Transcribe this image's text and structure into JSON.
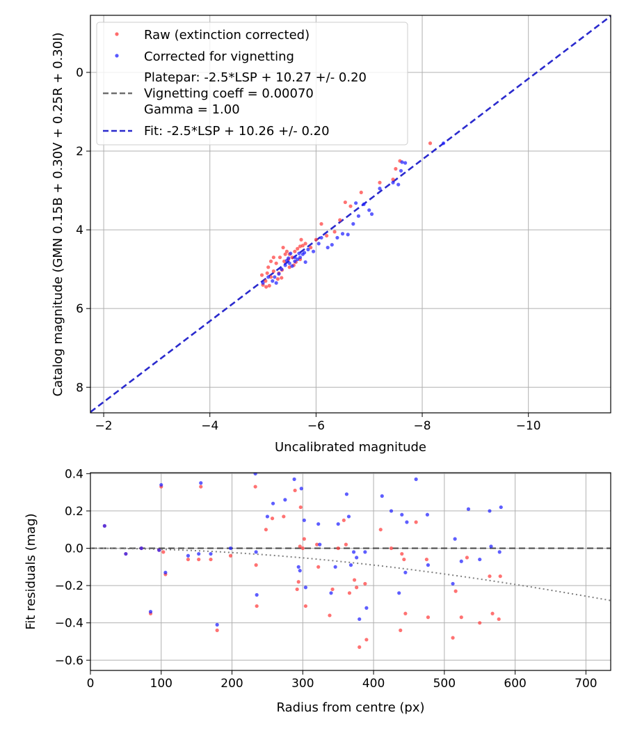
{
  "colors": {
    "raw": "#ff3b3b",
    "corrected": "#2020ff",
    "fit": "#2a2acd",
    "platepar": "#6e6e6e",
    "grid": "#b0b0b0",
    "zero_line": "#444444",
    "vignetting_curve": "#7f7f7f"
  },
  "chart_data": [
    {
      "id": "top",
      "type": "scatter",
      "xlabel": "Uncalibrated magnitude",
      "ylabel": "Catalog magnitude (GMN 0.15B + 0.30V + 0.25R + 0.30I)",
      "xlim": [
        -1.75,
        -11.55
      ],
      "ylim": [
        8.65,
        -1.45
      ],
      "xticks": [
        -2,
        -4,
        -6,
        -8,
        -10
      ],
      "xtick_labels": [
        "−2",
        "−4",
        "−6",
        "−8",
        "−10"
      ],
      "yticks": [
        0,
        2,
        4,
        6,
        8
      ],
      "ytick_labels": [
        "0",
        "2",
        "4",
        "6",
        "8"
      ],
      "grid": true,
      "legend": {
        "placement": "top-left",
        "entries": [
          {
            "label": "Raw (extinction corrected)",
            "style": "marker",
            "color_key": "raw"
          },
          {
            "label": "Corrected for vignetting",
            "style": "marker",
            "color_key": "corrected"
          },
          {
            "label": "Platepar: -2.5*LSP + 10.27 +/- 0.20",
            "style": "text"
          },
          {
            "label": "Vignetting coeff = 0.00070",
            "style": "dashed",
            "color_key": "platepar"
          },
          {
            "label": "Gamma = 1.00",
            "style": "text"
          },
          {
            "label": "Fit: -2.5*LSP + 10.26 +/- 0.20",
            "style": "dashed",
            "color_key": "fit"
          }
        ]
      },
      "lines": [
        {
          "name": "Fit",
          "x": [
            -1.75,
            -11.55
          ],
          "y": [
            8.63,
            -1.43
          ]
        }
      ],
      "series": [
        {
          "name": "Raw (extinction corrected)",
          "color_key": "raw",
          "points": [
            [
              -5.0,
              5.4
            ],
            [
              -5.05,
              5.3
            ],
            [
              -5.12,
              5.42
            ],
            [
              -4.98,
              5.15
            ],
            [
              -5.15,
              5.2
            ],
            [
              -5.2,
              5.05
            ],
            [
              -5.1,
              4.95
            ],
            [
              -5.28,
              5.25
            ],
            [
              -5.35,
              5.22
            ],
            [
              -5.3,
              5.1
            ],
            [
              -5.25,
              4.85
            ],
            [
              -5.4,
              4.8
            ],
            [
              -5.32,
              4.7
            ],
            [
              -5.45,
              4.55
            ],
            [
              -5.5,
              4.62
            ],
            [
              -5.55,
              4.7
            ],
            [
              -5.6,
              4.55
            ],
            [
              -5.65,
              4.48
            ],
            [
              -5.7,
              4.42
            ],
            [
              -5.75,
              4.4
            ],
            [
              -5.8,
              4.35
            ],
            [
              -5.58,
              4.9
            ],
            [
              -5.62,
              4.82
            ],
            [
              -5.7,
              4.75
            ],
            [
              -5.2,
              4.7
            ],
            [
              -5.38,
              4.45
            ],
            [
              -5.72,
              4.25
            ],
            [
              -5.42,
              4.62
            ],
            [
              -5.48,
              4.75
            ],
            [
              -5.15,
              4.8
            ],
            [
              -5.08,
              5.1
            ],
            [
              -5.5,
              4.95
            ],
            [
              -5.9,
              4.45
            ],
            [
              -6.0,
              4.25
            ],
            [
              -6.1,
              3.85
            ],
            [
              -6.2,
              4.15
            ],
            [
              -6.35,
              4.05
            ],
            [
              -6.45,
              3.75
            ],
            [
              -6.55,
              3.3
            ],
            [
              -6.65,
              3.4
            ],
            [
              -6.85,
              3.05
            ],
            [
              -7.2,
              2.8
            ],
            [
              -7.5,
              2.45
            ],
            [
              -7.58,
              2.25
            ],
            [
              -7.45,
              2.72
            ],
            [
              -8.15,
              1.8
            ],
            [
              -5.36,
              5.02
            ],
            [
              -5.06,
              5.45
            ]
          ]
        },
        {
          "name": "Corrected for vignetting",
          "color_key": "corrected",
          "points": [
            [
              -5.1,
              5.2
            ],
            [
              -5.18,
              5.3
            ],
            [
              -5.25,
              5.35
            ],
            [
              -5.3,
              5.12
            ],
            [
              -5.35,
              5.0
            ],
            [
              -5.42,
              4.9
            ],
            [
              -5.5,
              4.85
            ],
            [
              -5.55,
              4.92
            ],
            [
              -5.6,
              4.8
            ],
            [
              -5.65,
              4.75
            ],
            [
              -5.7,
              4.7
            ],
            [
              -5.75,
              4.62
            ],
            [
              -5.78,
              4.58
            ],
            [
              -5.8,
              4.82
            ],
            [
              -5.6,
              4.7
            ],
            [
              -5.45,
              4.78
            ],
            [
              -5.85,
              4.5
            ],
            [
              -5.95,
              4.55
            ],
            [
              -6.05,
              4.35
            ],
            [
              -6.1,
              4.2
            ],
            [
              -6.3,
              4.38
            ],
            [
              -6.4,
              4.2
            ],
            [
              -6.5,
              4.1
            ],
            [
              -6.6,
              4.12
            ],
            [
              -6.7,
              3.85
            ],
            [
              -6.8,
              3.65
            ],
            [
              -6.9,
              3.35
            ],
            [
              -7.0,
              3.5
            ],
            [
              -7.05,
              3.6
            ],
            [
              -7.2,
              2.95
            ],
            [
              -7.45,
              2.8
            ],
            [
              -7.55,
              2.85
            ],
            [
              -7.6,
              2.5
            ],
            [
              -7.62,
              2.28
            ],
            [
              -7.68,
              2.3
            ],
            [
              -8.4,
              1.8
            ],
            [
              -5.0,
              5.35
            ],
            [
              -5.22,
              5.2
            ],
            [
              -5.48,
              4.72
            ],
            [
              -5.68,
              4.6
            ],
            [
              -6.22,
              4.45
            ],
            [
              -6.75,
              3.32
            ],
            [
              -5.52,
              4.6
            ]
          ]
        }
      ]
    },
    {
      "id": "bottom",
      "type": "scatter",
      "xlabel": "Radius from centre (px)",
      "ylabel": "Fit residuals (mag)",
      "xlim": [
        0,
        735
      ],
      "ylim": [
        -0.655,
        0.405
      ],
      "xticks": [
        0,
        100,
        200,
        300,
        400,
        500,
        600,
        700
      ],
      "xtick_labels": [
        "0",
        "100",
        "200",
        "300",
        "400",
        "500",
        "600",
        "700"
      ],
      "yticks": [
        0.4,
        0.2,
        0.0,
        -0.2,
        -0.4,
        -0.6
      ],
      "ytick_labels": [
        "0.4",
        "0.2",
        "0.0",
        "−0.2",
        "−0.4",
        "−0.6"
      ],
      "grid": true,
      "lines": [
        {
          "name": "zero",
          "x": [
            0,
            735
          ],
          "y": [
            0,
            0
          ]
        },
        {
          "name": "vignetting",
          "type": "curve",
          "coeff": 0.0007,
          "x_range": [
            0,
            735
          ]
        }
      ],
      "series": [
        {
          "name": "Raw (extinction corrected)",
          "color_key": "raw",
          "points": [
            [
              20,
              0.12
            ],
            [
              50,
              -0.03
            ],
            [
              72,
              0.0
            ],
            [
              85,
              -0.35
            ],
            [
              97,
              -0.01
            ],
            [
              100,
              0.33
            ],
            [
              103,
              -0.02
            ],
            [
              106,
              -0.14
            ],
            [
              138,
              -0.06
            ],
            [
              153,
              -0.06
            ],
            [
              156,
              0.33
            ],
            [
              170,
              -0.06
            ],
            [
              179,
              -0.44
            ],
            [
              198,
              -0.04
            ],
            [
              233,
              0.33
            ],
            [
              234,
              -0.09
            ],
            [
              235,
              -0.31
            ],
            [
              248,
              0.1
            ],
            [
              257,
              0.16
            ],
            [
              273,
              0.17
            ],
            [
              289,
              0.31
            ],
            [
              292,
              -0.22
            ],
            [
              294,
              -0.18
            ],
            [
              296,
              0.01
            ],
            [
              297,
              0.22
            ],
            [
              300,
              0.0
            ],
            [
              302,
              0.05
            ],
            [
              304,
              -0.31
            ],
            [
              320,
              0.02
            ],
            [
              322,
              -0.1
            ],
            [
              338,
              -0.36
            ],
            [
              342,
              -0.22
            ],
            [
              350,
              0.0
            ],
            [
              358,
              0.15
            ],
            [
              361,
              0.02
            ],
            [
              366,
              -0.24
            ],
            [
              373,
              -0.17
            ],
            [
              376,
              -0.21
            ],
            [
              380,
              -0.53
            ],
            [
              388,
              -0.19
            ],
            [
              390,
              -0.49
            ],
            [
              410,
              0.1
            ],
            [
              425,
              0.0
            ],
            [
              438,
              -0.44
            ],
            [
              440,
              -0.03
            ],
            [
              443,
              -0.06
            ],
            [
              445,
              -0.35
            ],
            [
              460,
              0.14
            ],
            [
              475,
              -0.06
            ],
            [
              477,
              -0.37
            ],
            [
              512,
              -0.48
            ],
            [
              516,
              -0.23
            ],
            [
              524,
              -0.37
            ],
            [
              532,
              -0.05
            ],
            [
              550,
              -0.4
            ],
            [
              564,
              -0.15
            ],
            [
              568,
              -0.35
            ],
            [
              577,
              -0.38
            ],
            [
              579,
              -0.15
            ]
          ]
        },
        {
          "name": "Corrected for vignetting",
          "color_key": "corrected",
          "points": [
            [
              20,
              0.12
            ],
            [
              50,
              -0.03
            ],
            [
              72,
              0.0
            ],
            [
              85,
              -0.34
            ],
            [
              97,
              -0.01
            ],
            [
              100,
              0.34
            ],
            [
              106,
              -0.13
            ],
            [
              138,
              -0.04
            ],
            [
              153,
              -0.03
            ],
            [
              156,
              0.35
            ],
            [
              170,
              -0.03
            ],
            [
              179,
              -0.41
            ],
            [
              198,
              0.0
            ],
            [
              233,
              0.4
            ],
            [
              234,
              -0.02
            ],
            [
              235,
              -0.25
            ],
            [
              250,
              0.17
            ],
            [
              258,
              0.24
            ],
            [
              275,
              0.26
            ],
            [
              288,
              0.37
            ],
            [
              294,
              -0.1
            ],
            [
              296,
              -0.12
            ],
            [
              298,
              0.32
            ],
            [
              302,
              0.15
            ],
            [
              304,
              -0.21
            ],
            [
              322,
              0.13
            ],
            [
              324,
              0.02
            ],
            [
              340,
              -0.24
            ],
            [
              346,
              -0.1
            ],
            [
              350,
              0.13
            ],
            [
              362,
              0.29
            ],
            [
              365,
              0.17
            ],
            [
              368,
              -0.09
            ],
            [
              372,
              -0.02
            ],
            [
              376,
              -0.05
            ],
            [
              380,
              -0.38
            ],
            [
              388,
              -0.02
            ],
            [
              390,
              -0.32
            ],
            [
              412,
              0.28
            ],
            [
              425,
              0.2
            ],
            [
              436,
              -0.24
            ],
            [
              440,
              0.18
            ],
            [
              445,
              -0.13
            ],
            [
              447,
              0.14
            ],
            [
              460,
              0.37
            ],
            [
              476,
              0.18
            ],
            [
              477,
              -0.09
            ],
            [
              512,
              -0.19
            ],
            [
              515,
              0.05
            ],
            [
              524,
              -0.07
            ],
            [
              534,
              0.21
            ],
            [
              550,
              -0.06
            ],
            [
              564,
              0.2
            ],
            [
              566,
              0.01
            ],
            [
              578,
              -0.02
            ],
            [
              580,
              0.22
            ]
          ]
        }
      ]
    }
  ]
}
